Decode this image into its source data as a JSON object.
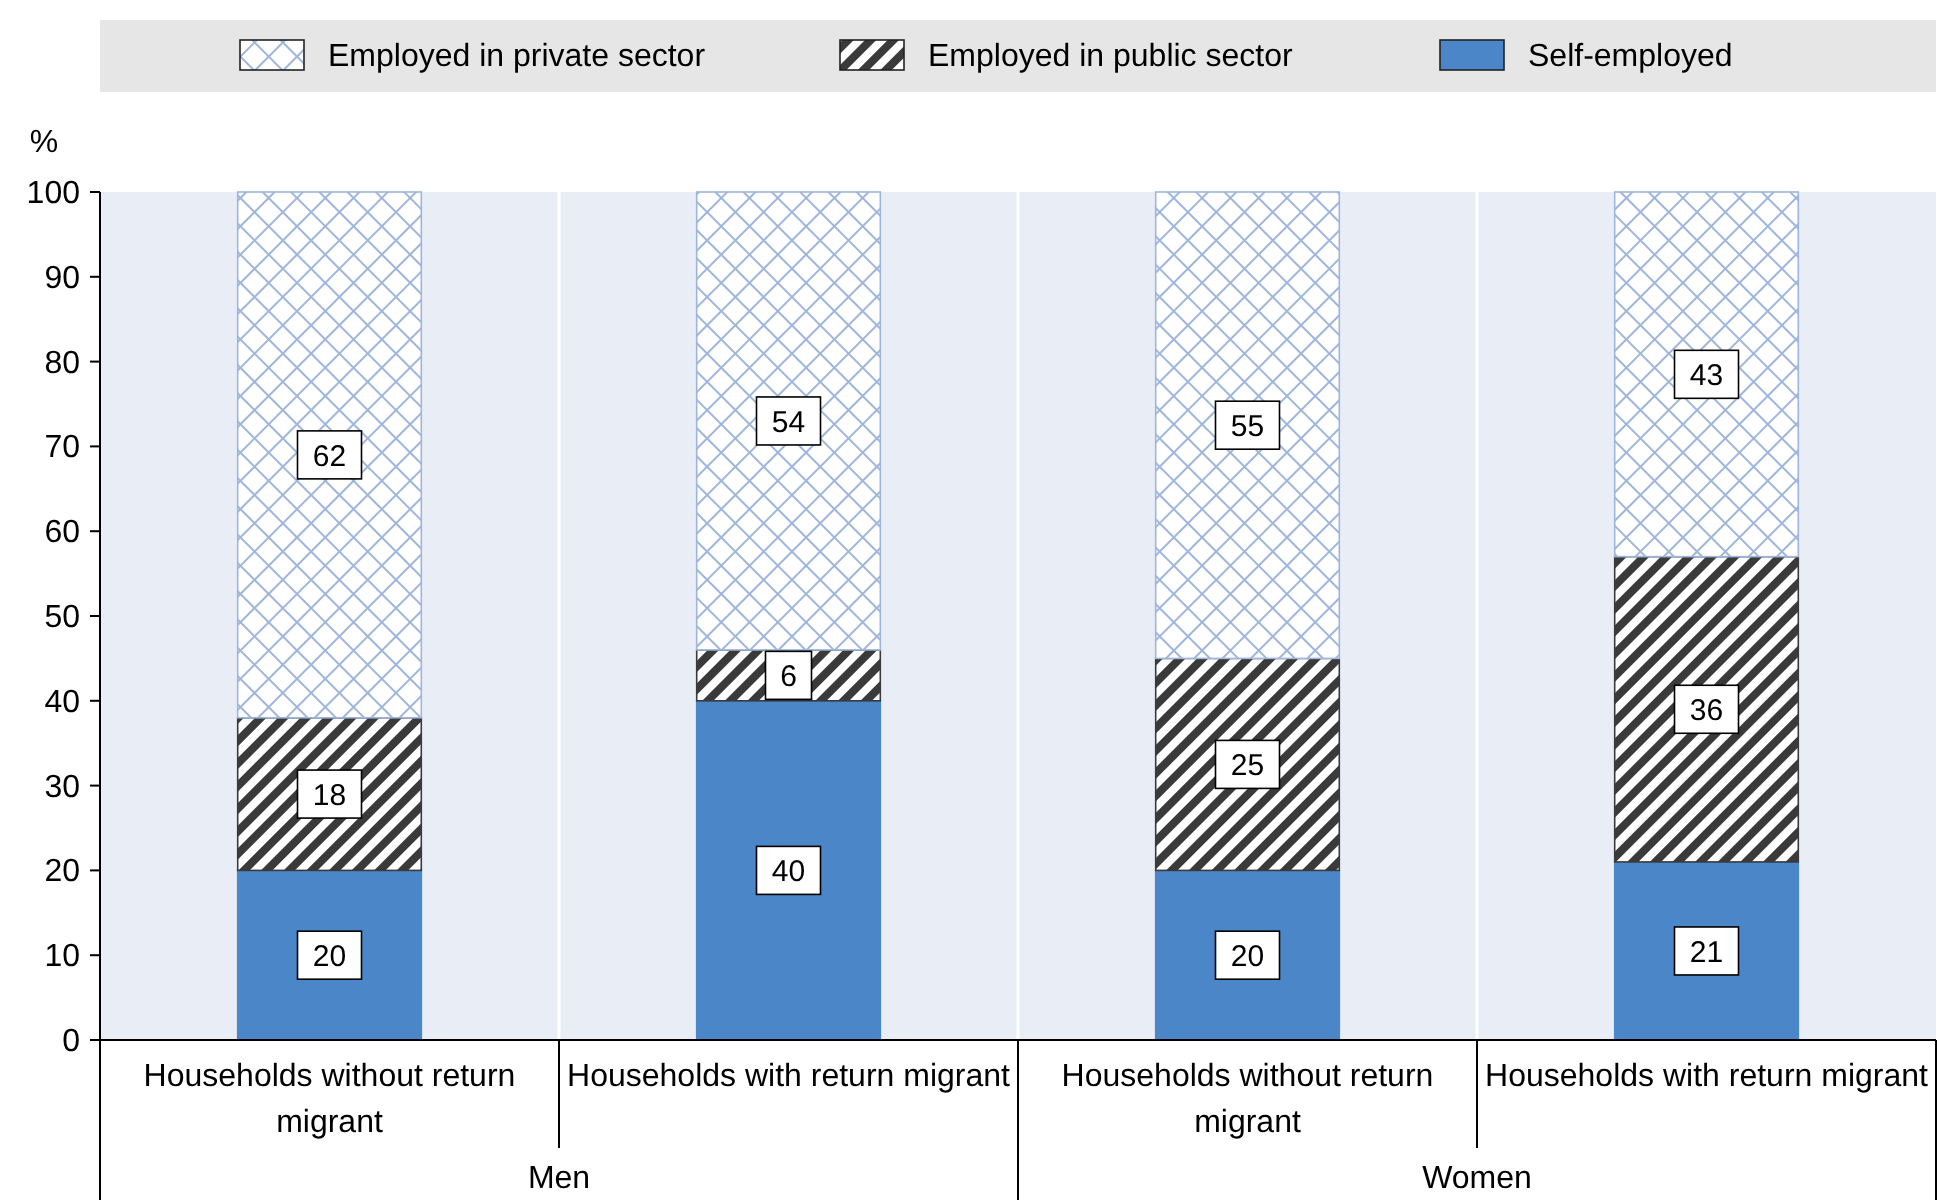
{
  "chart_data": {
    "type": "bar",
    "stacked": true,
    "ylabel": "%",
    "categories": [
      "Households without return migrant",
      "Households with return migrant",
      "Households without return migrant",
      "Households with return migrant"
    ],
    "series": [
      {
        "name": "Self-employed",
        "color": "#4a86c8",
        "values": [
          20,
          40,
          20,
          21
        ]
      },
      {
        "name": "Employed in public sector",
        "color": "#3a3a3a",
        "values": [
          18,
          6,
          25,
          36
        ]
      },
      {
        "name": "Employed in private sector",
        "color": "#9fb6dc",
        "values": [
          62,
          54,
          55,
          43
        ]
      }
    ],
    "ylim": [
      0,
      100
    ],
    "yticks": [
      0,
      10,
      20,
      30,
      40,
      50,
      60,
      70,
      80,
      90,
      100
    ],
    "grid": "x",
    "legend": "top",
    "data_labels": true,
    "annotations": [
      "Men",
      "Women"
    ]
  }
}
